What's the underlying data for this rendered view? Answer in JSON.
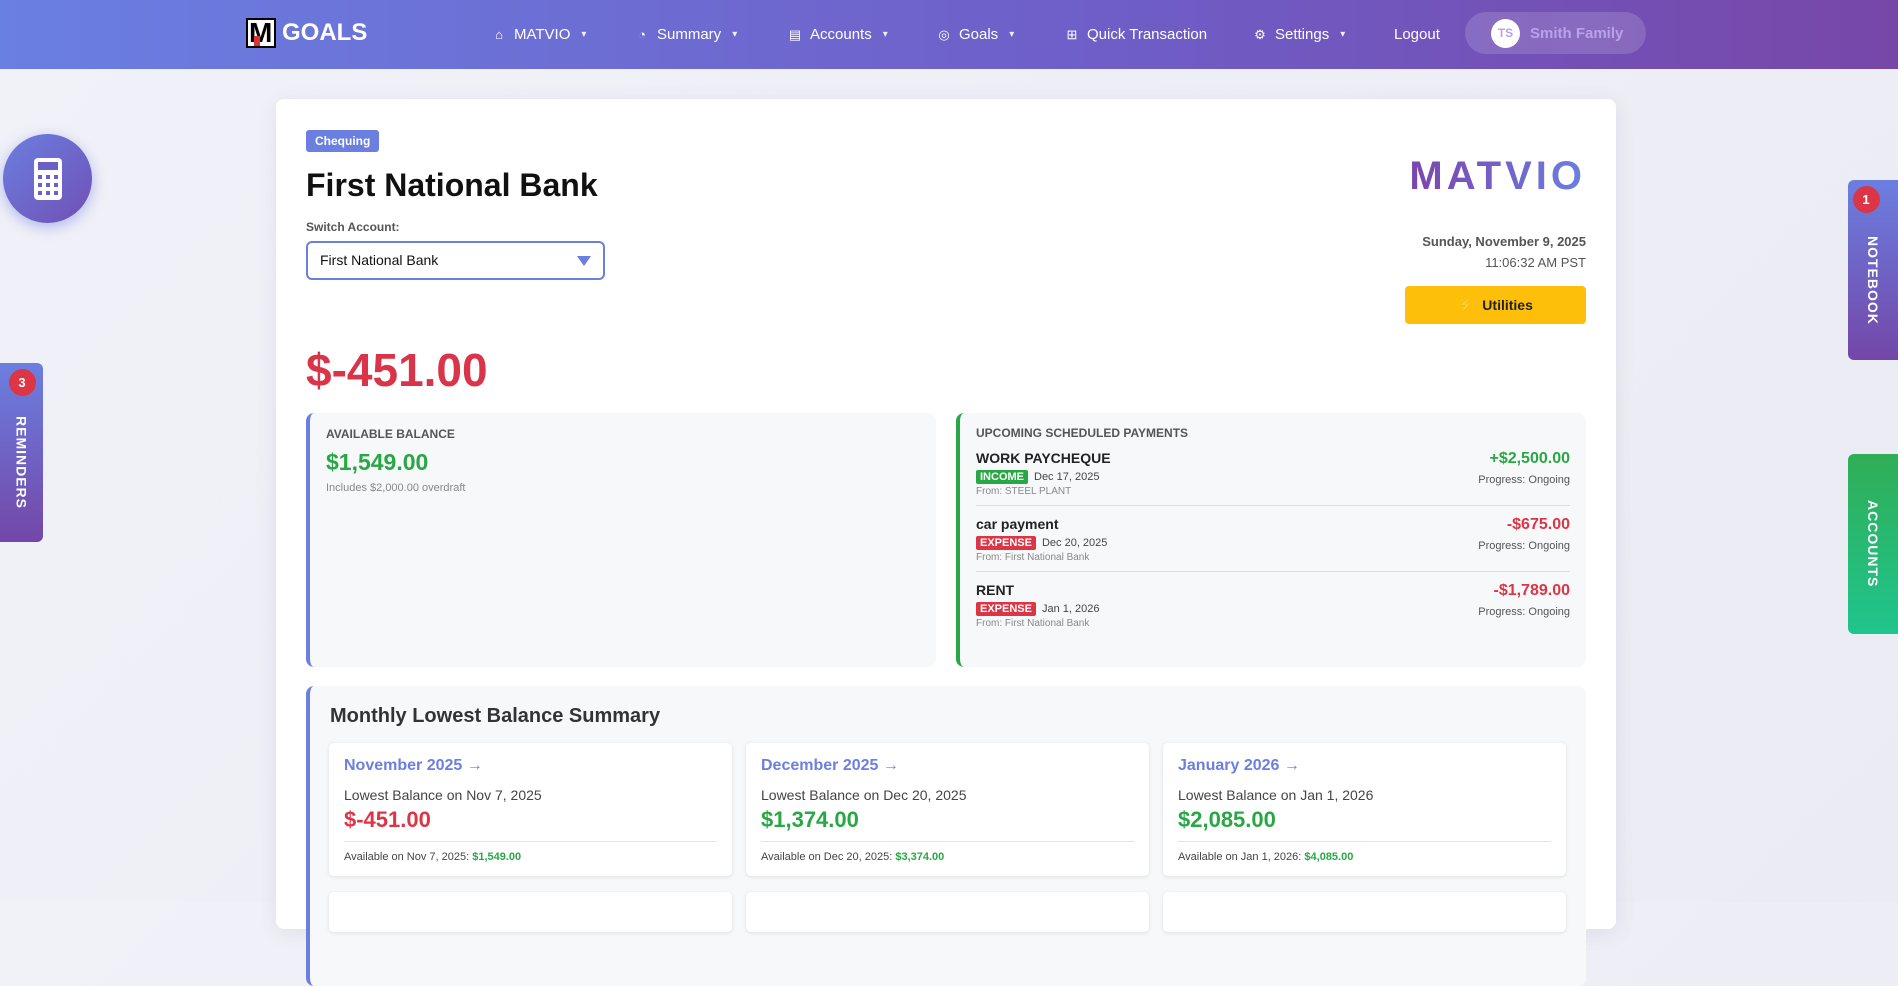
{
  "nav": {
    "brand": "GOALS",
    "items": [
      {
        "label": "MATVIO",
        "icon": "home-icon",
        "glyph": "⌂",
        "dropdown": true
      },
      {
        "label": "Summary",
        "icon": "gauge-icon",
        "glyph": "◔",
        "dropdown": true
      },
      {
        "label": "Accounts",
        "icon": "card-icon",
        "glyph": "▤",
        "dropdown": true
      },
      {
        "label": "Goals",
        "icon": "target-icon",
        "glyph": "◎",
        "dropdown": true
      },
      {
        "label": "Quick Transaction",
        "icon": "add-transaction-icon",
        "glyph": "⊞",
        "dropdown": false
      },
      {
        "label": "Settings",
        "icon": "gear-icon",
        "glyph": "⚙",
        "dropdown": true
      },
      {
        "label": "Logout"
      }
    ],
    "user": {
      "initials": "TS",
      "name": "Smith Family"
    }
  },
  "account": {
    "type": "Chequing",
    "name": "First National Bank",
    "switch_label": "Switch Account:",
    "selected": "First National Bank",
    "balance": "$-451.00",
    "logo": "MATVIO",
    "date": "Sunday, November 9, 2025",
    "time": "11:06:32 AM PST",
    "utilities": "Utilities"
  },
  "available": {
    "label": "AVAILABLE BALANCE",
    "value": "$1,549.00",
    "note": "Includes $2,000.00 overdraft"
  },
  "upcoming": {
    "label": "UPCOMING SCHEDULED PAYMENTS",
    "items": [
      {
        "name": "WORK PAYCHEQUE",
        "type": "INCOME",
        "date": "Dec 17, 2025",
        "from": "From: STEEL PLANT",
        "amount": "+$2,500.00",
        "progress": "Progress: Ongoing"
      },
      {
        "name": "car payment",
        "type": "EXPENSE",
        "date": "Dec 20, 2025",
        "from": "From: First National Bank",
        "amount": "-$675.00",
        "progress": "Progress: Ongoing"
      },
      {
        "name": "RENT",
        "type": "EXPENSE",
        "date": "Jan 1, 2026",
        "from": "From: First National Bank",
        "amount": "-$1,789.00",
        "progress": "Progress: Ongoing"
      }
    ]
  },
  "monthly": {
    "title": "Monthly Lowest Balance Summary",
    "cards": [
      {
        "month": "November 2025 →",
        "label": "Lowest Balance on Nov 7, 2025",
        "value": "$-451.00",
        "avail_label": "Available on Nov 7, 2025: ",
        "avail": "$1,549.00"
      },
      {
        "month": "December 2025 →",
        "label": "Lowest Balance on Dec 20, 2025",
        "value": "$1,374.00",
        "avail_label": "Available on Dec 20, 2025: ",
        "avail": "$3,374.00"
      },
      {
        "month": "January 2026 →",
        "label": "Lowest Balance on Jan 1, 2026",
        "value": "$2,085.00",
        "avail_label": "Available on Jan 1, 2026: ",
        "avail": "$4,085.00"
      }
    ]
  },
  "side": {
    "reminders": {
      "label": "REMINDERS",
      "count": "3"
    },
    "notebook": {
      "label": "NOTEBOOK",
      "count": "1"
    },
    "accounts": {
      "label": "ACCOUNTS"
    }
  },
  "colors": {
    "accent": "#6b7fe0",
    "income": "#28a745",
    "expense": "#dc3545",
    "warning": "#fdbf0a"
  }
}
